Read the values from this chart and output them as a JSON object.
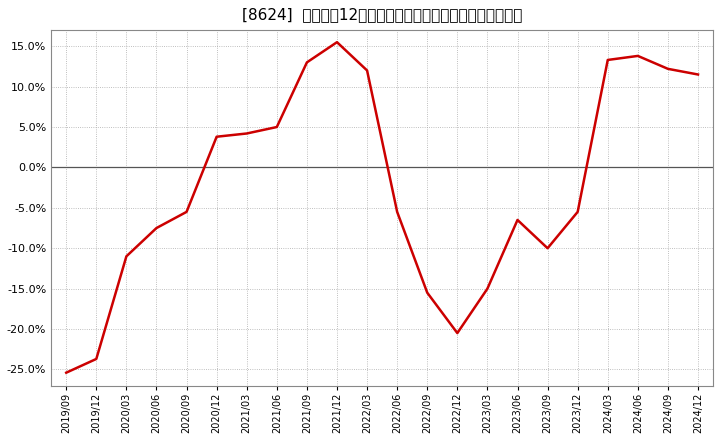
{
  "title": "[8624]  売上高の12か月移動合計の対前年同期増減率の推移",
  "line_color": "#cc0000",
  "background_color": "#ffffff",
  "plot_bg_color": "#ffffff",
  "grid_color": "#aaaaaa",
  "zero_line_color": "#555555",
  "spine_color": "#888888",
  "ylim": [
    -0.27,
    0.17
  ],
  "yticks": [
    -0.25,
    -0.2,
    -0.15,
    -0.1,
    -0.05,
    0.0,
    0.05,
    0.1,
    0.15
  ],
  "dates": [
    "2019/09",
    "2019/12",
    "2020/03",
    "2020/06",
    "2020/09",
    "2020/12",
    "2021/03",
    "2021/06",
    "2021/09",
    "2021/12",
    "2022/03",
    "2022/06",
    "2022/09",
    "2022/12",
    "2023/03",
    "2023/06",
    "2023/09",
    "2023/12",
    "2024/03",
    "2024/06",
    "2024/09",
    "2024/12"
  ],
  "values": [
    -0.254,
    -0.237,
    -0.11,
    -0.075,
    -0.055,
    0.038,
    0.042,
    0.05,
    0.13,
    0.155,
    0.12,
    -0.055,
    -0.155,
    -0.205,
    -0.15,
    -0.065,
    -0.1,
    -0.055,
    0.133,
    0.138,
    0.122,
    0.115
  ],
  "title_fontsize": 11,
  "tick_fontsize": 8,
  "xtick_fontsize": 7,
  "linewidth": 1.8
}
